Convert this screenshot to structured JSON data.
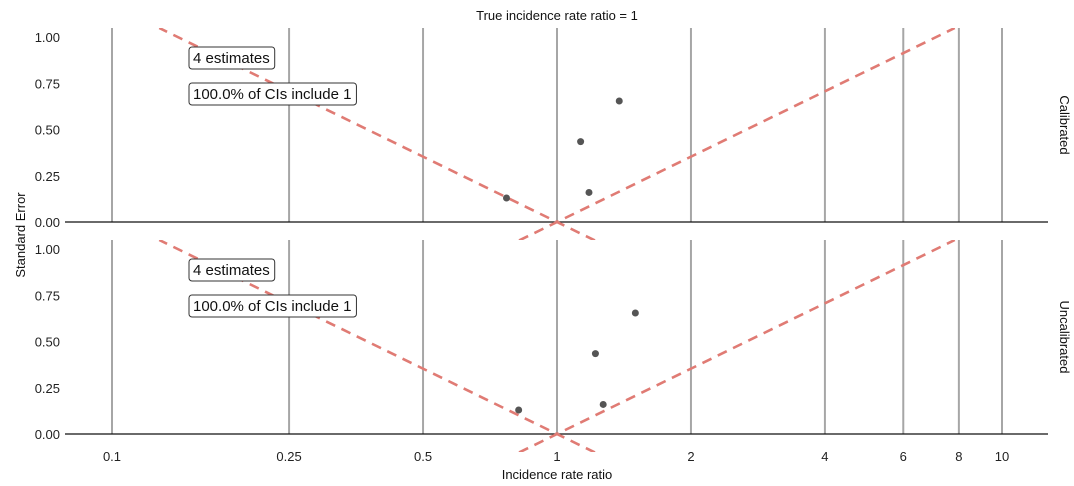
{
  "chart_data": {
    "type": "scatter",
    "title": "True incidence rate ratio = 1",
    "xlabel": "Incidence rate ratio",
    "ylabel": "Standard Error",
    "x_scale": "log",
    "xlim": [
      0.08,
      12
    ],
    "ylim": [
      0,
      1.05
    ],
    "x_ticks": [
      0.1,
      0.25,
      0.5,
      1,
      2,
      4,
      6,
      8,
      10
    ],
    "x_tick_labels": [
      "0.1",
      "0.25",
      "0.5",
      "1",
      "2",
      "4",
      "6",
      "8",
      "10"
    ],
    "y_ticks": [
      0,
      0.25,
      0.5,
      0.75,
      1.0
    ],
    "y_tick_labels": [
      "0.00",
      "0.25",
      "0.50",
      "0.75",
      "1.00"
    ],
    "true_value": 1,
    "panels": [
      {
        "name": "Calibrated",
        "annotations": [
          "4 estimates",
          "100.0% of CIs include 1"
        ],
        "points": [
          {
            "x": 0.77,
            "y": 0.13
          },
          {
            "x": 1.13,
            "y": 0.435
          },
          {
            "x": 1.18,
            "y": 0.16
          },
          {
            "x": 1.38,
            "y": 0.655
          }
        ]
      },
      {
        "name": "Uncalibrated",
        "annotations": [
          "4 estimates",
          "100.0% of CIs include 1"
        ],
        "points": [
          {
            "x": 0.82,
            "y": 0.13
          },
          {
            "x": 1.22,
            "y": 0.435
          },
          {
            "x": 1.27,
            "y": 0.16
          },
          {
            "x": 1.5,
            "y": 0.655
          }
        ]
      }
    ]
  }
}
